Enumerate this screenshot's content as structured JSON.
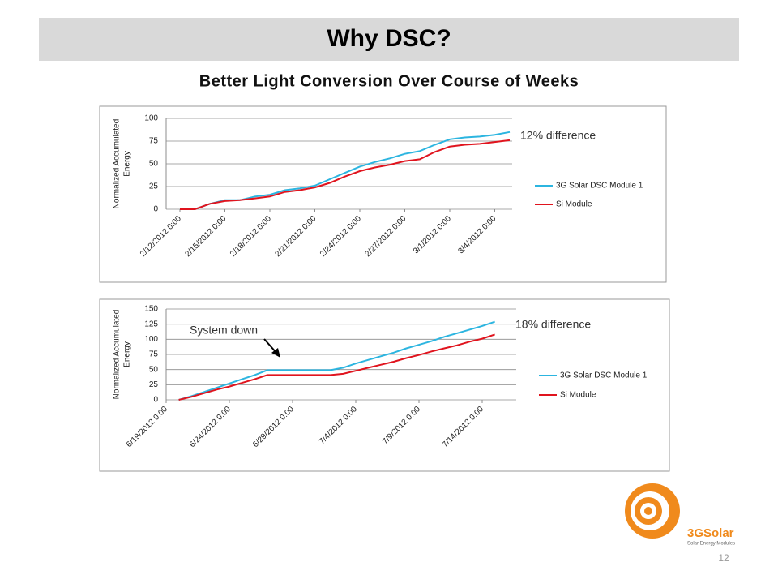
{
  "slide": {
    "title": "Why DSC?",
    "subtitle": "Better Light Conversion Over Course of Weeks",
    "page_number": "12",
    "logo": {
      "name": "3GSolar",
      "tagline": "Solar Energy Modules"
    }
  },
  "chart_data": [
    {
      "type": "line",
      "ylabel": [
        "Normalized Accumulated",
        "Energy"
      ],
      "categories": [
        "2/12/2012 0:00",
        null,
        null,
        "2/15/2012 0:00",
        null,
        null,
        "2/18/2012 0:00",
        null,
        null,
        "2/21/2012 0:00",
        null,
        null,
        "2/24/2012 0:00",
        null,
        null,
        "2/27/2012 0:00",
        null,
        null,
        "3/1/2012 0:00",
        null,
        null,
        "3/4/2012 0:00",
        null
      ],
      "series": [
        {
          "name": "3G Solar DSC Module 1",
          "color": "#2cb5e0",
          "values": [
            0,
            0,
            6,
            10,
            10,
            14,
            16,
            21,
            23,
            26,
            33,
            40,
            47,
            52,
            56,
            61,
            64,
            71,
            77,
            79,
            80,
            82,
            85
          ]
        },
        {
          "name": "Si Module",
          "color": "#e0141e",
          "values": [
            0,
            0,
            6,
            9,
            10,
            12,
            14,
            19,
            21,
            24,
            29,
            36,
            42,
            46,
            49,
            53,
            55,
            63,
            69,
            71,
            72,
            74,
            76
          ]
        }
      ],
      "ylim": [
        0,
        100
      ],
      "yticks": [
        0,
        25,
        50,
        75,
        100
      ],
      "grid": true,
      "legend": "right",
      "annotations": [
        "12% difference"
      ]
    },
    {
      "type": "line",
      "ylabel": [
        "Normalized Accumulated",
        "Energy"
      ],
      "categories": [
        "6/19/2012 0:00",
        null,
        null,
        null,
        null,
        "6/24/2012 0:00",
        null,
        null,
        null,
        null,
        "6/29/2012 0:00",
        null,
        null,
        null,
        null,
        "7/4/2012 0:00",
        null,
        null,
        null,
        null,
        "7/9/2012 0:00",
        null,
        null,
        null,
        null,
        "7/14/2012 0:00",
        null,
        null
      ],
      "series": [
        {
          "name": "3G Solar DSC Module 1",
          "color": "#2cb5e0",
          "values": [
            null,
            0,
            6,
            13,
            20,
            27,
            34,
            41,
            49,
            49,
            49,
            49,
            49,
            49,
            53,
            60,
            66,
            72,
            78,
            85,
            91,
            97,
            104,
            110,
            116,
            122,
            129,
            null
          ]
        },
        {
          "name": "Si Module",
          "color": "#e0141e",
          "values": [
            null,
            0,
            5,
            11,
            17,
            22,
            28,
            34,
            41,
            41,
            41,
            41,
            41,
            41,
            43,
            48,
            53,
            58,
            63,
            69,
            74,
            80,
            85,
            90,
            96,
            101,
            108,
            null
          ]
        }
      ],
      "ylim": [
        0,
        150
      ],
      "yticks": [
        0,
        25,
        50,
        75,
        100,
        125,
        150
      ],
      "grid": true,
      "legend": "right",
      "annotations": [
        "18% difference",
        "System down"
      ]
    }
  ]
}
